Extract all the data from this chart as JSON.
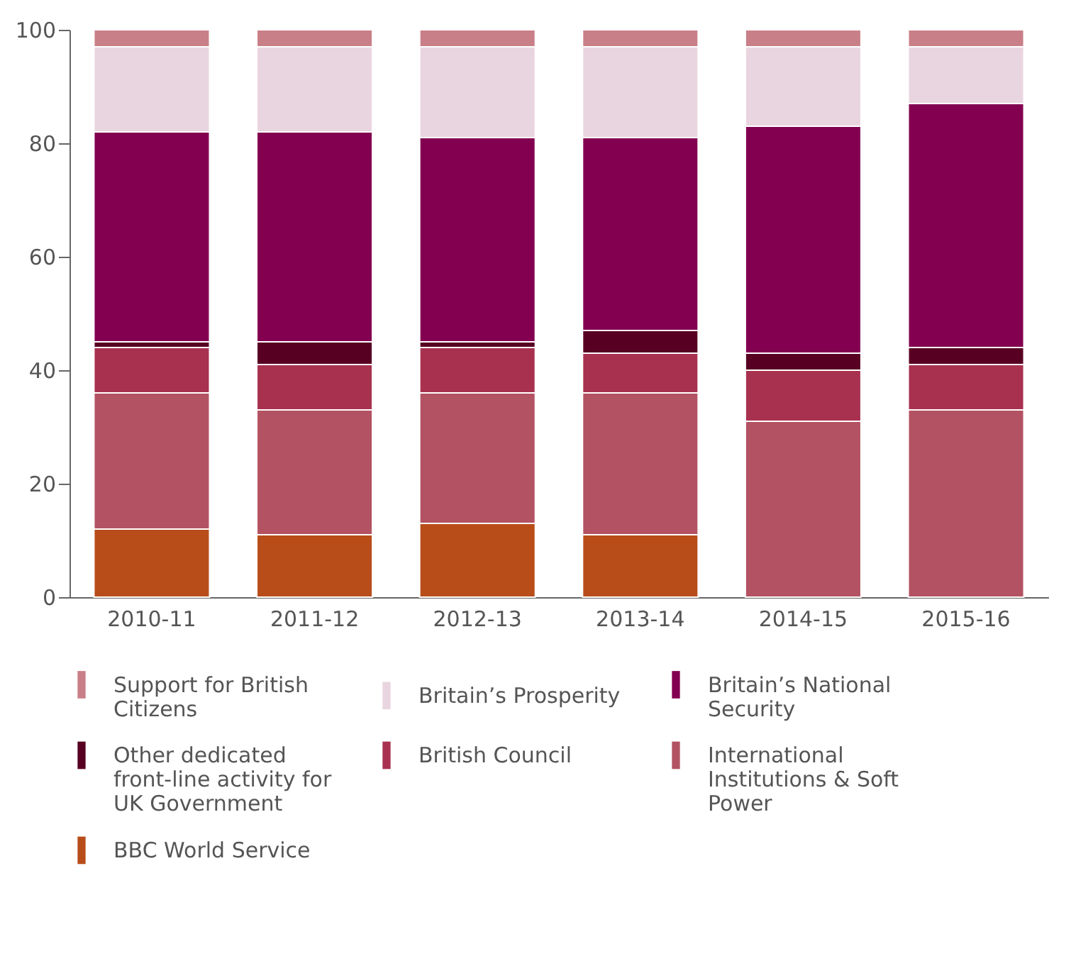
{
  "chart_data": {
    "type": "bar",
    "stacked": true,
    "categories": [
      "2010-11",
      "2011-12",
      "2012-13",
      "2013-14",
      "2014-15",
      "2015-16"
    ],
    "series": [
      {
        "name": "BBC World Service",
        "color": "#b84d1a",
        "values": [
          12,
          11,
          13,
          11,
          0,
          0
        ]
      },
      {
        "name": "International Institutions & Soft Power",
        "color": "#b35262",
        "values": [
          24,
          22,
          23,
          25,
          31,
          33
        ]
      },
      {
        "name": "British Council",
        "color": "#a83150",
        "values": [
          8,
          8,
          8,
          7,
          9,
          8
        ]
      },
      {
        "name": "Other dedicated front-line activity for UK Government",
        "color": "#570022",
        "values": [
          1,
          4,
          1,
          4,
          3,
          3
        ]
      },
      {
        "name": "Britain’s National Security",
        "color": "#830051",
        "values": [
          37,
          37,
          36,
          34,
          40,
          43
        ]
      },
      {
        "name": "Britain’s Prosperity",
        "color": "#e9d5df",
        "values": [
          15,
          15,
          16,
          16,
          14,
          10
        ]
      },
      {
        "name": "Support for British Citizens",
        "color": "#c97f87",
        "values": [
          3,
          3,
          3,
          3,
          3,
          3
        ]
      }
    ],
    "ylim": [
      0,
      100
    ],
    "yticks": [
      0,
      20,
      40,
      60,
      80,
      100
    ],
    "grid": false,
    "legend": "bottom"
  }
}
